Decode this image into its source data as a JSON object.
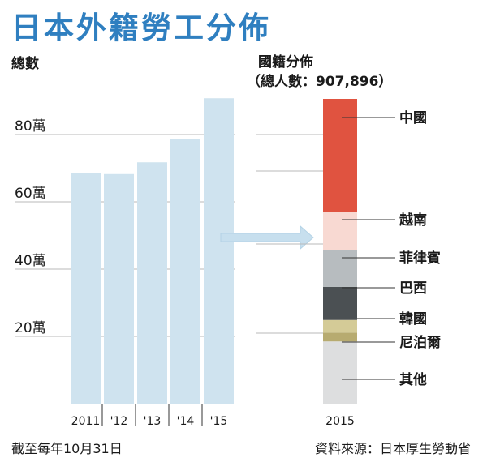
{
  "title": "日本外籍勞工分佈",
  "chart_data": [
    {
      "type": "bar",
      "ylabel": "總數",
      "categories": [
        "2011",
        "'12",
        "'13",
        "'14",
        "'15"
      ],
      "values": [
        686246,
        682450,
        717504,
        787627,
        907896
      ],
      "ylim": [
        0,
        1000000
      ],
      "yticks": [
        {
          "value": 200000,
          "label": "20萬"
        },
        {
          "value": 400000,
          "label": "40萬"
        },
        {
          "value": 600000,
          "label": "60萬"
        },
        {
          "value": 800000,
          "label": "80萬"
        }
      ],
      "grid": true
    },
    {
      "type": "bar",
      "stacked": true,
      "title": "國籍分佈",
      "subtitle": "（總人數：907,896）",
      "category": "2015",
      "total": 907896,
      "series": [
        {
          "name": "其他",
          "share": 0.197,
          "color": "#dddedf"
        },
        {
          "name": "尼泊爾",
          "share": 0.028,
          "color": "#b7ab70"
        },
        {
          "name": "韓國",
          "share": 0.04,
          "color": "#d4cb97"
        },
        {
          "name": "巴西",
          "share": 0.105,
          "color": "#4b5053"
        },
        {
          "name": "菲律賓",
          "share": 0.117,
          "color": "#b7bcbf"
        },
        {
          "name": "越南",
          "share": 0.121,
          "color": "#f8d9d2"
        },
        {
          "name": "中國",
          "share": 0.357,
          "color": "#e05340"
        }
      ]
    }
  ],
  "footer": {
    "note": "截至每年10月31日",
    "source": "資料來源：日本厚生勞動省"
  }
}
